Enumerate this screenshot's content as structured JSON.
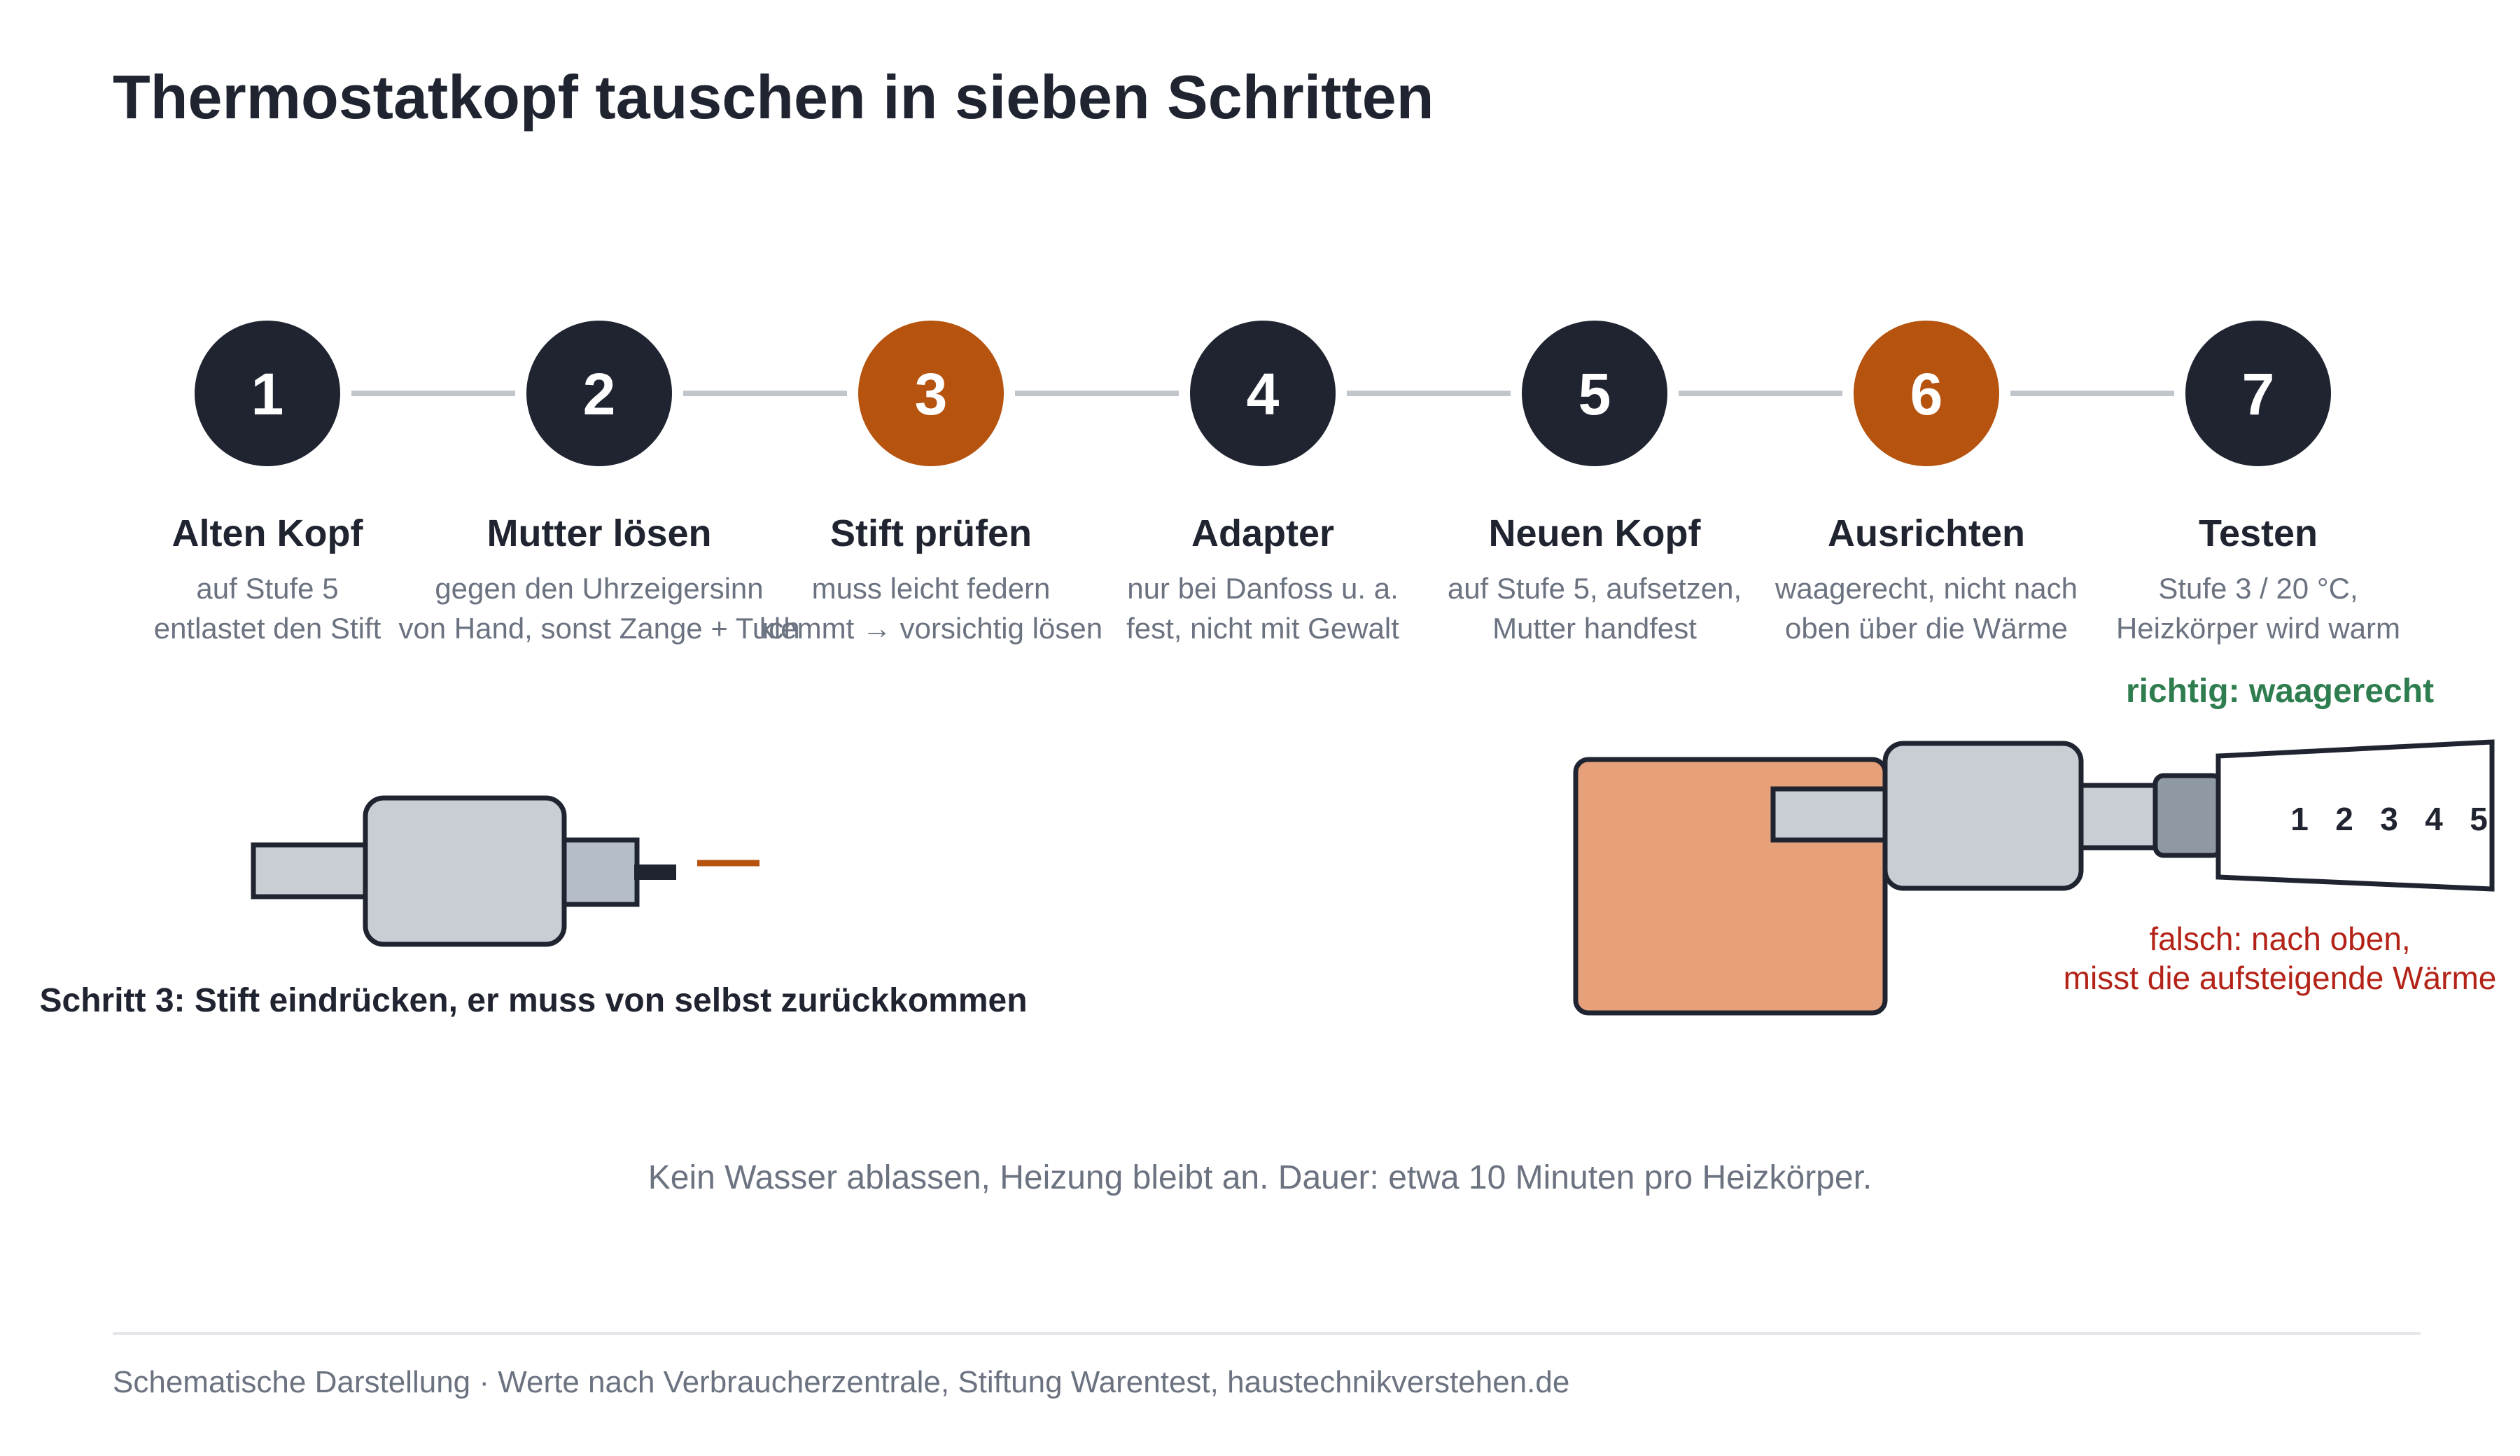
{
  "title": "Thermostatkopf tauschen in sieben Schritten",
  "steps": [
    {
      "number": "1",
      "title": "Alten Kopf",
      "line1": "auf Stufe 5",
      "line2": "entlastet den Stift",
      "highlight": false
    },
    {
      "number": "2",
      "title": "Mutter lösen",
      "line1": "gegen den Uhrzeigersinn",
      "line2": "von Hand, sonst Zange + Tuch",
      "highlight": false
    },
    {
      "number": "3",
      "title": "Stift prüfen",
      "line1": "muss leicht federn",
      "line2": "klemmt → vorsichtig lösen",
      "highlight": true
    },
    {
      "number": "4",
      "title": "Adapter",
      "line1": "nur bei Danfoss u. a.",
      "line2": "fest, nicht mit Gewalt",
      "highlight": false
    },
    {
      "number": "5",
      "title": "Neuen Kopf",
      "line1": "auf Stufe 5, aufsetzen,",
      "line2": "Mutter handfest",
      "highlight": false
    },
    {
      "number": "6",
      "title": "Ausrichten",
      "line1": "waagerecht, nicht nach",
      "line2": "oben über die Wärme",
      "highlight": true
    },
    {
      "number": "7",
      "title": "Testen",
      "line1": "Stufe 3 / 20 °C,",
      "line2": "Heizkörper wird warm",
      "highlight": false
    }
  ],
  "detail_left": {
    "caption": "Schritt 3: Stift eindrücken, er muss von selbst zurückkommen"
  },
  "detail_right": {
    "label_correct": "richtig: waagerecht",
    "scale": [
      "1",
      "2",
      "3",
      "4",
      "5"
    ],
    "label_wrong_line1": "falsch: nach oben,",
    "label_wrong_line2": "misst die aufsteigende Wärme"
  },
  "note": "Kein Wasser ablassen, Heizung bleibt an. Dauer: etwa 10 Minuten pro Heizkörper.",
  "source": "Schematische Darstellung · Werte nach Verbraucherzentrale, Stiftung Warentest, haustechnikverstehen.de",
  "colors": {
    "dark": "#1f2430",
    "accent": "#b5530f",
    "connector": "#c0c6cc",
    "correct": "#2e7d4f",
    "wrong": "#b42318",
    "radiator": "#e6a07a",
    "metal": "#c9ced5",
    "metal_dark": "#8f99a3",
    "muted": "#6b7280"
  }
}
